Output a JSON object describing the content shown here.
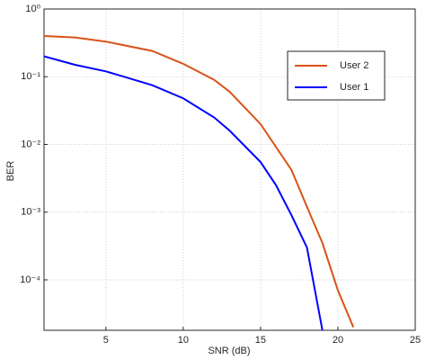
{
  "chart_data": {
    "type": "line",
    "xlabel": "SNR (dB)",
    "ylabel": "BER",
    "xlim": [
      1,
      25
    ],
    "xticks": [
      5,
      10,
      15,
      20,
      25
    ],
    "ylim": [
      1.8e-05,
      1
    ],
    "yscale": "log",
    "yticks": [
      {
        "value": 1,
        "label": "10⁰"
      },
      {
        "value": 0.1,
        "label": "10⁻¹"
      },
      {
        "value": 0.01,
        "label": "10⁻²"
      },
      {
        "value": 0.001,
        "label": "10⁻³"
      },
      {
        "value": 0.0001,
        "label": "10⁻⁴"
      }
    ],
    "grid": true,
    "legend": "upper right",
    "series": [
      {
        "name": "User 2",
        "color": "#d95319",
        "x": [
          1,
          3,
          5,
          8,
          10,
          12,
          13,
          15,
          17,
          18,
          19,
          20,
          21
        ],
        "values": [
          0.4,
          0.38,
          0.33,
          0.24,
          0.155,
          0.09,
          0.06,
          0.02,
          0.0042,
          0.0012,
          0.00035,
          7e-05,
          2e-05
        ]
      },
      {
        "name": "User 1",
        "color": "#0000ff",
        "x": [
          1,
          3,
          5,
          8,
          10,
          12,
          13,
          15,
          16,
          17,
          18,
          19
        ],
        "values": [
          0.2,
          0.15,
          0.12,
          0.075,
          0.048,
          0.025,
          0.016,
          0.0055,
          0.0025,
          0.0009,
          0.0003,
          1.8e-05
        ]
      }
    ]
  }
}
